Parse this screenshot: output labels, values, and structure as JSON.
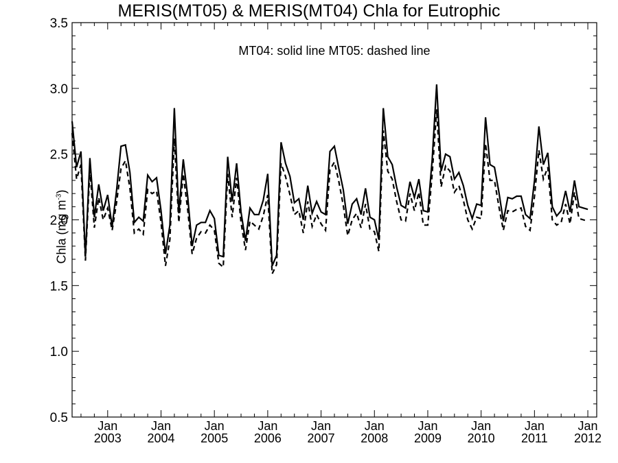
{
  "chart_data": {
    "type": "line",
    "title": "MERIS(MT05) & MERIS(MT04)  Chla for Eutrophic",
    "annotation": "MT04: solid line   MT05: dashed line",
    "ylabel": "Chla (mg m",
    "ylabel_sup": "-3",
    "ylabel_close": ")",
    "ylim": [
      0.5,
      3.5
    ],
    "y_ticks": [
      "0.5",
      "1.0",
      "1.5",
      "2.0",
      "2.5",
      "3.0",
      "3.5"
    ],
    "xlim": [
      "2002-05",
      "2012-03"
    ],
    "x_ticks": [
      {
        "date": "2003-01",
        "month": "Jan",
        "year": "2003"
      },
      {
        "date": "2004-01",
        "month": "Jan",
        "year": "2004"
      },
      {
        "date": "2005-01",
        "month": "Jan",
        "year": "2005"
      },
      {
        "date": "2006-01",
        "month": "Jan",
        "year": "2006"
      },
      {
        "date": "2007-01",
        "month": "Jan",
        "year": "2007"
      },
      {
        "date": "2008-01",
        "month": "Jan",
        "year": "2008"
      },
      {
        "date": "2009-01",
        "month": "Jan",
        "year": "2009"
      },
      {
        "date": "2010-01",
        "month": "Jan",
        "year": "2010"
      },
      {
        "date": "2011-01",
        "month": "Jan",
        "year": "2011"
      },
      {
        "date": "2012-01",
        "month": "Jan",
        "year": "2012"
      }
    ],
    "grid": false,
    "series": [
      {
        "name": "MT04",
        "style": "solid",
        "color": "#000000",
        "points": [
          [
            "2002-05",
            2.75
          ],
          [
            "2002-06",
            2.4
          ],
          [
            "2002-07",
            2.52
          ],
          [
            "2002-08",
            1.72
          ],
          [
            "2002-09",
            2.47
          ],
          [
            "2002-10",
            2.02
          ],
          [
            "2002-11",
            2.27
          ],
          [
            "2002-12",
            2.07
          ],
          [
            "2003-01",
            2.19
          ],
          [
            "2003-02",
            1.95
          ],
          [
            "2003-03",
            2.22
          ],
          [
            "2003-04",
            2.56
          ],
          [
            "2003-05",
            2.57
          ],
          [
            "2003-06",
            2.36
          ],
          [
            "2003-07",
            1.98
          ],
          [
            "2003-08",
            2.02
          ],
          [
            "2003-09",
            1.99
          ],
          [
            "2003-10",
            2.34
          ],
          [
            "2003-11",
            2.29
          ],
          [
            "2003-12",
            2.32
          ],
          [
            "2004-01",
            2.07
          ],
          [
            "2004-02",
            1.74
          ],
          [
            "2004-03",
            1.96
          ],
          [
            "2004-04",
            2.85
          ],
          [
            "2004-05",
            2.05
          ],
          [
            "2004-06",
            2.46
          ],
          [
            "2004-07",
            2.18
          ],
          [
            "2004-08",
            1.8
          ],
          [
            "2004-09",
            1.96
          ],
          [
            "2004-10",
            1.98
          ],
          [
            "2004-11",
            1.98
          ],
          [
            "2004-12",
            2.07
          ],
          [
            "2005-01",
            2.01
          ],
          [
            "2005-02",
            1.73
          ],
          [
            "2005-03",
            1.72
          ],
          [
            "2005-04",
            2.48
          ],
          [
            "2005-05",
            2.14
          ],
          [
            "2005-06",
            2.43
          ],
          [
            "2005-07",
            2.06
          ],
          [
            "2005-08",
            1.84
          ],
          [
            "2005-09",
            2.09
          ],
          [
            "2005-10",
            2.04
          ],
          [
            "2005-11",
            2.04
          ],
          [
            "2005-12",
            2.15
          ],
          [
            "2006-01",
            2.35
          ],
          [
            "2006-02",
            1.65
          ],
          [
            "2006-03",
            1.73
          ],
          [
            "2006-04",
            2.59
          ],
          [
            "2006-05",
            2.43
          ],
          [
            "2006-06",
            2.33
          ],
          [
            "2006-07",
            2.13
          ],
          [
            "2006-08",
            2.16
          ],
          [
            "2006-09",
            2.0
          ],
          [
            "2006-10",
            2.26
          ],
          [
            "2006-11",
            2.05
          ],
          [
            "2006-12",
            2.14
          ],
          [
            "2007-01",
            2.06
          ],
          [
            "2007-02",
            2.04
          ],
          [
            "2007-03",
            2.52
          ],
          [
            "2007-04",
            2.56
          ],
          [
            "2007-05",
            2.39
          ],
          [
            "2007-06",
            2.23
          ],
          [
            "2007-07",
            1.97
          ],
          [
            "2007-08",
            2.12
          ],
          [
            "2007-09",
            2.16
          ],
          [
            "2007-10",
            2.04
          ],
          [
            "2007-11",
            2.24
          ],
          [
            "2007-12",
            2.02
          ],
          [
            "2008-01",
            2.0
          ],
          [
            "2008-02",
            1.85
          ],
          [
            "2008-03",
            2.85
          ],
          [
            "2008-04",
            2.48
          ],
          [
            "2008-05",
            2.42
          ],
          [
            "2008-06",
            2.25
          ],
          [
            "2008-07",
            2.11
          ],
          [
            "2008-08",
            2.09
          ],
          [
            "2008-09",
            2.29
          ],
          [
            "2008-10",
            2.17
          ],
          [
            "2008-11",
            2.31
          ],
          [
            "2008-12",
            2.07
          ],
          [
            "2009-01",
            2.06
          ],
          [
            "2009-02",
            2.46
          ],
          [
            "2009-03",
            3.03
          ],
          [
            "2009-04",
            2.37
          ],
          [
            "2009-05",
            2.5
          ],
          [
            "2009-06",
            2.48
          ],
          [
            "2009-07",
            2.31
          ],
          [
            "2009-08",
            2.36
          ],
          [
            "2009-09",
            2.26
          ],
          [
            "2009-10",
            2.11
          ],
          [
            "2009-11",
            2.01
          ],
          [
            "2009-12",
            2.12
          ],
          [
            "2010-01",
            2.11
          ],
          [
            "2010-02",
            2.78
          ],
          [
            "2010-03",
            2.42
          ],
          [
            "2010-04",
            2.4
          ],
          [
            "2010-05",
            2.21
          ],
          [
            "2010-06",
            1.99
          ],
          [
            "2010-07",
            2.17
          ],
          [
            "2010-08",
            2.16
          ],
          [
            "2010-09",
            2.18
          ],
          [
            "2010-10",
            2.18
          ],
          [
            "2010-11",
            2.04
          ],
          [
            "2010-12",
            2.01
          ],
          [
            "2011-01",
            2.3
          ],
          [
            "2011-02",
            2.71
          ],
          [
            "2011-03",
            2.42
          ],
          [
            "2011-04",
            2.51
          ],
          [
            "2011-05",
            2.1
          ],
          [
            "2011-06",
            2.03
          ],
          [
            "2011-07",
            2.07
          ],
          [
            "2011-08",
            2.22
          ],
          [
            "2011-09",
            2.06
          ],
          [
            "2011-10",
            2.3
          ],
          [
            "2011-11",
            2.1
          ],
          [
            "2011-12",
            2.09
          ],
          [
            "2012-01",
            2.08
          ]
        ]
      },
      {
        "name": "MT05",
        "style": "dashed",
        "color": "#000000",
        "points": [
          [
            "2002-05",
            2.66
          ],
          [
            "2002-06",
            2.31
          ],
          [
            "2002-07",
            2.42
          ],
          [
            "2002-08",
            1.69
          ],
          [
            "2002-09",
            2.38
          ],
          [
            "2002-10",
            1.94
          ],
          [
            "2002-11",
            2.17
          ],
          [
            "2002-12",
            2.0
          ],
          [
            "2003-01",
            2.09
          ],
          [
            "2003-02",
            1.92
          ],
          [
            "2003-03",
            2.13
          ],
          [
            "2003-04",
            2.39
          ],
          [
            "2003-05",
            2.45
          ],
          [
            "2003-06",
            2.24
          ],
          [
            "2003-07",
            1.9
          ],
          [
            "2003-08",
            1.93
          ],
          [
            "2003-09",
            1.89
          ],
          [
            "2003-10",
            2.23
          ],
          [
            "2003-11",
            2.2
          ],
          [
            "2003-12",
            2.22
          ],
          [
            "2004-01",
            1.98
          ],
          [
            "2004-02",
            1.65
          ],
          [
            "2004-03",
            1.85
          ],
          [
            "2004-04",
            2.62
          ],
          [
            "2004-05",
            1.98
          ],
          [
            "2004-06",
            2.35
          ],
          [
            "2004-07",
            2.08
          ],
          [
            "2004-08",
            1.74
          ],
          [
            "2004-09",
            1.86
          ],
          [
            "2004-10",
            1.91
          ],
          [
            "2004-11",
            1.9
          ],
          [
            "2004-12",
            1.96
          ],
          [
            "2005-01",
            1.92
          ],
          [
            "2005-02",
            1.67
          ],
          [
            "2005-03",
            1.64
          ],
          [
            "2005-04",
            2.35
          ],
          [
            "2005-05",
            2.02
          ],
          [
            "2005-06",
            2.32
          ],
          [
            "2005-07",
            1.98
          ],
          [
            "2005-08",
            1.77
          ],
          [
            "2005-09",
            1.99
          ],
          [
            "2005-10",
            1.96
          ],
          [
            "2005-11",
            1.93
          ],
          [
            "2005-12",
            2.03
          ],
          [
            "2006-01",
            2.19
          ],
          [
            "2006-02",
            1.59
          ],
          [
            "2006-03",
            1.66
          ],
          [
            "2006-04",
            2.43
          ],
          [
            "2006-05",
            2.33
          ],
          [
            "2006-06",
            2.19
          ],
          [
            "2006-07",
            2.04
          ],
          [
            "2006-08",
            2.07
          ],
          [
            "2006-09",
            1.9
          ],
          [
            "2006-10",
            2.14
          ],
          [
            "2006-11",
            1.95
          ],
          [
            "2006-12",
            2.04
          ],
          [
            "2007-01",
            1.97
          ],
          [
            "2007-02",
            1.92
          ],
          [
            "2007-03",
            2.38
          ],
          [
            "2007-04",
            2.44
          ],
          [
            "2007-05",
            2.29
          ],
          [
            "2007-06",
            2.11
          ],
          [
            "2007-07",
            1.88
          ],
          [
            "2007-08",
            2.0
          ],
          [
            "2007-09",
            2.05
          ],
          [
            "2007-10",
            1.94
          ],
          [
            "2007-11",
            2.12
          ],
          [
            "2007-12",
            1.93
          ],
          [
            "2008-01",
            1.91
          ],
          [
            "2008-02",
            1.76
          ],
          [
            "2008-03",
            2.68
          ],
          [
            "2008-04",
            2.37
          ],
          [
            "2008-05",
            2.31
          ],
          [
            "2008-06",
            2.14
          ],
          [
            "2008-07",
            2.0
          ],
          [
            "2008-08",
            1.99
          ],
          [
            "2008-09",
            2.2
          ],
          [
            "2008-10",
            2.07
          ],
          [
            "2008-11",
            2.21
          ],
          [
            "2008-12",
            1.96
          ],
          [
            "2009-01",
            1.96
          ],
          [
            "2009-02",
            2.35
          ],
          [
            "2009-03",
            2.84
          ],
          [
            "2009-04",
            2.25
          ],
          [
            "2009-05",
            2.41
          ],
          [
            "2009-06",
            2.37
          ],
          [
            "2009-07",
            2.21
          ],
          [
            "2009-08",
            2.26
          ],
          [
            "2009-09",
            2.15
          ],
          [
            "2009-10",
            2.0
          ],
          [
            "2009-11",
            1.93
          ],
          [
            "2009-12",
            2.02
          ],
          [
            "2010-01",
            2.01
          ],
          [
            "2010-02",
            2.58
          ],
          [
            "2010-03",
            2.3
          ],
          [
            "2010-04",
            2.3
          ],
          [
            "2010-05",
            2.1
          ],
          [
            "2010-06",
            1.92
          ],
          [
            "2010-07",
            2.07
          ],
          [
            "2010-08",
            2.06
          ],
          [
            "2010-09",
            2.08
          ],
          [
            "2010-10",
            2.09
          ],
          [
            "2010-11",
            1.95
          ],
          [
            "2010-12",
            1.92
          ],
          [
            "2011-01",
            2.18
          ],
          [
            "2011-02",
            2.53
          ],
          [
            "2011-03",
            2.31
          ],
          [
            "2011-04",
            2.4
          ],
          [
            "2011-05",
            2.0
          ],
          [
            "2011-06",
            1.96
          ],
          [
            "2011-07",
            1.98
          ],
          [
            "2011-08",
            2.12
          ],
          [
            "2011-09",
            1.97
          ],
          [
            "2011-10",
            2.21
          ],
          [
            "2011-11",
            2.01
          ],
          [
            "2011-12",
            2.0
          ],
          [
            "2012-01",
            1.99
          ]
        ]
      }
    ]
  }
}
